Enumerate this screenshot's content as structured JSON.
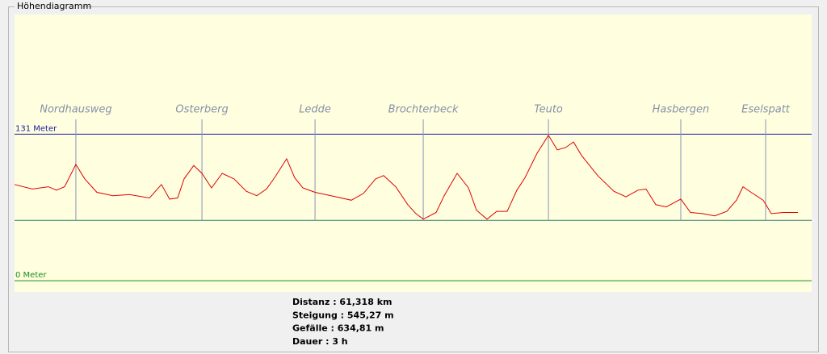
{
  "window": {
    "group_title": "Höhendiagramm"
  },
  "chart_data": {
    "type": "line",
    "x": [
      0,
      1.39,
      2.65,
      3.29,
      3.92,
      4.8,
      5.5,
      6.45,
      7.71,
      8.98,
      10.56,
      11.5,
      12.14,
      12.77,
      13.27,
      14.03,
      14.67,
      15.42,
      16.25,
      17.19,
      18.14,
      18.96,
      19.72,
      20.35,
      21.3,
      21.93,
      22.57,
      23.52,
      24.78,
      26.36,
      27.31,
      28.26,
      28.89,
      29.84,
      30.78,
      31.42,
      31.99,
      33.0,
      33.63,
      34.64,
      35.53,
      36.16,
      36.98,
      37.74,
      38.56,
      39.32,
      39.95,
      40.9,
      41.79,
      42.48,
      43.12,
      43.75,
      44.38,
      45.64,
      46.91,
      47.86,
      48.8,
      49.43,
      50.19,
      51.01,
      52.15,
      52.91,
      53.86,
      54.8,
      55.75,
      56.51,
      57.02,
      57.65,
      58.6,
      59.23,
      60.18,
      61.318
    ],
    "series": [
      {
        "color": "#e00000",
        "values": [
          86,
          82,
          84,
          81,
          84,
          104,
          91,
          79,
          76,
          77,
          74,
          86,
          73,
          74,
          91,
          103,
          96,
          83,
          96,
          91,
          80,
          76,
          82,
          92,
          109,
          92,
          83,
          79,
          76,
          72,
          78,
          91,
          94,
          84,
          68,
          60,
          55,
          61,
          76,
          96,
          83,
          63,
          55,
          62,
          62,
          81,
          92,
          114,
          130,
          117,
          119,
          124,
          112,
          94,
          80,
          75,
          81,
          82,
          68,
          66,
          73,
          61,
          60,
          58,
          62,
          72,
          84,
          79,
          72,
          60,
          61,
          61
        ]
      }
    ],
    "xlim": [
      0,
      61.318
    ],
    "ylim": [
      -10,
      238
    ],
    "yticks": [
      {
        "value": 131,
        "label": "131 Meter"
      },
      {
        "value": 0,
        "label": "0 Meter"
      }
    ],
    "tick_colors": [
      "#1a1aa0",
      "#1e8a1e"
    ],
    "reference_lines": [
      54
    ],
    "reference_color": "#2f7f6f",
    "markers": [
      {
        "name": "Nordhausweg",
        "x": 4.8
      },
      {
        "name": "Osterberg",
        "x": 14.67
      },
      {
        "name": "Ledde",
        "x": 23.52
      },
      {
        "name": "Brochterbeck",
        "x": 31.99
      },
      {
        "name": "Teuto",
        "x": 41.79
      },
      {
        "name": "Hasbergen",
        "x": 52.15
      },
      {
        "name": "Eselspatt",
        "x": 58.79
      }
    ],
    "marker_color": "#8a93b8"
  },
  "stats": [
    "Distanz : 61,318 km",
    "Steigung : 545,27 m",
    "Gefälle : 634,81 m",
    "Dauer : 3 h"
  ]
}
